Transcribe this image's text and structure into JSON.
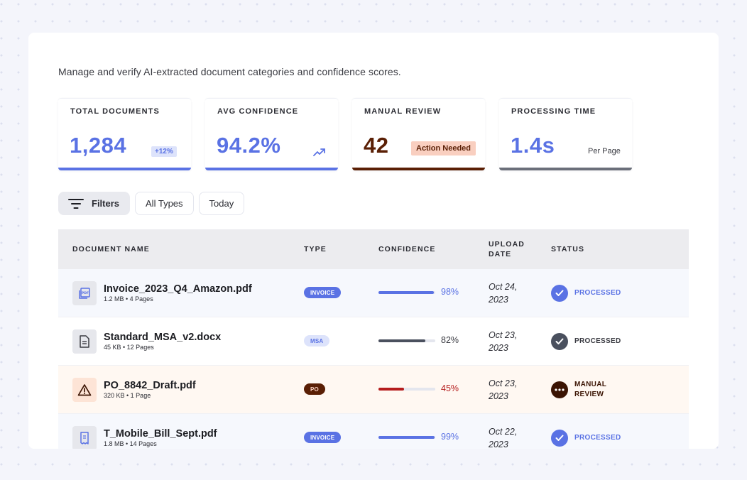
{
  "subtitle": "Manage and verify AI-extracted document categories and confidence scores.",
  "stats": [
    {
      "label": "TOTAL DOCUMENTS",
      "value": "1,284",
      "badge": "+12%",
      "color": "#5a72e4"
    },
    {
      "label": "AVG CONFIDENCE",
      "value": "94.2%",
      "icon": "trending-up-icon",
      "color": "#5a72e4"
    },
    {
      "label": "MANUAL REVIEW",
      "value": "42",
      "badge": "Action Needed",
      "color": "#5a1f05"
    },
    {
      "label": "PROCESSING TIME",
      "value": "1.4s",
      "note": "Per Page",
      "color": "#5a72e4"
    }
  ],
  "filters": {
    "primary": "Filters",
    "type": "All Types",
    "date": "Today"
  },
  "table": {
    "headers": {
      "name": "DOCUMENT NAME",
      "type": "TYPE",
      "confidence": "CONFIDENCE",
      "upload_date": "UPLOAD DATE",
      "status": "STATUS"
    },
    "rows": [
      {
        "name": "Invoice_2023_Q4_Amazon.pdf",
        "meta": "1.2 MB • 4 Pages",
        "type": "INVOICE",
        "confidence": 98,
        "confidence_label": "98%",
        "date_line1": "Oct 24,",
        "date_line2": "2023",
        "status_line1": "PROCESSED",
        "status_line2": "",
        "icon": "pdf-file-icon"
      },
      {
        "name": "Standard_MSA_v2.docx",
        "meta": "45 KB • 12 Pages",
        "type": "MSA",
        "confidence": 82,
        "confidence_label": "82%",
        "date_line1": "Oct 23,",
        "date_line2": "2023",
        "status_line1": "PROCESSED",
        "status_line2": "",
        "icon": "document-icon"
      },
      {
        "name": "PO_8842_Draft.pdf",
        "meta": "320 KB • 1 Page",
        "type": "PO",
        "confidence": 45,
        "confidence_label": "45%",
        "date_line1": "Oct 23,",
        "date_line2": "2023",
        "status_line1": "MANUAL",
        "status_line2": "REVIEW",
        "icon": "warning-icon"
      },
      {
        "name": "T_Mobile_Bill_Sept.pdf",
        "meta": "1.8 MB • 14 Pages",
        "type": "INVOICE",
        "confidence": 99,
        "confidence_label": "99%",
        "date_line1": "Oct 22,",
        "date_line2": "2023",
        "status_line1": "PROCESSED",
        "status_line2": "",
        "icon": "receipt-icon"
      }
    ]
  },
  "colors": {
    "accent": "#5a72e4",
    "slate": "#4a505e",
    "danger": "#b51d1d",
    "brown": "#5a1f05",
    "peach": "#f9cfc0"
  }
}
